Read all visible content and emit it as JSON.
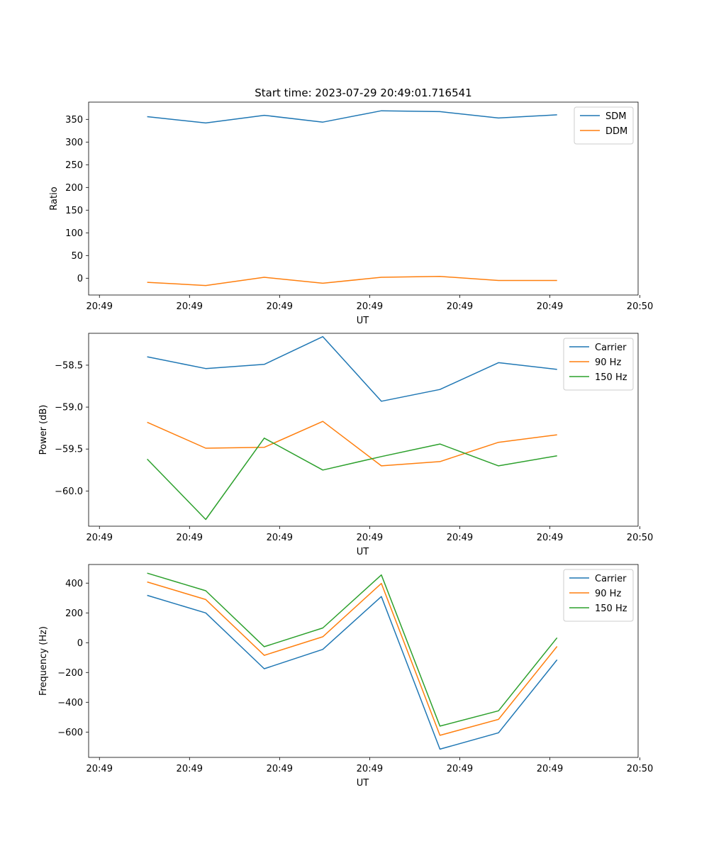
{
  "figure": {
    "title": "Start time: 2023-07-29 20:49:01.716541"
  },
  "colors": {
    "blue": "#1f77b4",
    "orange": "#ff7f0e",
    "green": "#2ca02c"
  },
  "chart_data": [
    {
      "type": "line",
      "title": "Start time: 2023-07-29 20:49:01.716541",
      "xlabel": "UT",
      "ylabel": "Ratio",
      "x": [
        0.65,
        1.3,
        1.95,
        2.6,
        3.25,
        3.9,
        4.55,
        5.2
      ],
      "xlim": [
        0.0,
        6.1
      ],
      "xticks": [
        0.12,
        1.12,
        2.12,
        3.12,
        4.12,
        5.12,
        6.12
      ],
      "xticklabels": [
        "20:49",
        "20:49",
        "20:49",
        "20:49",
        "20:49",
        "20:49",
        "20:50"
      ],
      "ylim": [
        -37,
        388
      ],
      "yticks": [
        0,
        50,
        100,
        150,
        200,
        250,
        300,
        350
      ],
      "yticklabels": [
        "0",
        "50",
        "100",
        "150",
        "200",
        "250",
        "300",
        "350"
      ],
      "legend_position": "top-right",
      "series": [
        {
          "name": "SDM",
          "color": "#1f77b4",
          "values": [
            356,
            342,
            359,
            344,
            369,
            367,
            353,
            360
          ]
        },
        {
          "name": "DDM",
          "color": "#ff7f0e",
          "values": [
            -9,
            -16,
            2,
            -11,
            2,
            4,
            -5,
            -5
          ]
        }
      ]
    },
    {
      "type": "line",
      "xlabel": "UT",
      "ylabel": "Power (dB)",
      "x": [
        0.65,
        1.3,
        1.95,
        2.6,
        3.25,
        3.9,
        4.55,
        5.2
      ],
      "xlim": [
        0.0,
        6.1
      ],
      "xticks": [
        0.12,
        1.12,
        2.12,
        3.12,
        4.12,
        5.12,
        6.12
      ],
      "xticklabels": [
        "20:49",
        "20:49",
        "20:49",
        "20:49",
        "20:49",
        "20:49",
        "20:50"
      ],
      "ylim": [
        -60.42,
        -58.12
      ],
      "yticks": [
        -60.0,
        -59.5,
        -59.0,
        -58.5
      ],
      "yticklabels": [
        "−60.0",
        "−59.5",
        "−59.0",
        "−58.5"
      ],
      "legend_position": "top-right",
      "series": [
        {
          "name": "Carrier",
          "color": "#1f77b4",
          "values": [
            -58.4,
            -58.54,
            -58.49,
            -58.16,
            -58.93,
            -58.79,
            -58.47,
            -58.55
          ]
        },
        {
          "name": "90 Hz",
          "color": "#ff7f0e",
          "values": [
            -59.18,
            -59.49,
            -59.48,
            -59.17,
            -59.7,
            -59.65,
            -59.42,
            -59.33
          ]
        },
        {
          "name": "150 Hz",
          "color": "#2ca02c",
          "values": [
            -59.62,
            -60.34,
            -59.37,
            -59.75,
            -59.59,
            -59.44,
            -59.7,
            -59.58
          ]
        }
      ]
    },
    {
      "type": "line",
      "xlabel": "UT",
      "ylabel": "Frequency (Hz)",
      "x": [
        0.65,
        1.3,
        1.95,
        2.6,
        3.25,
        3.9,
        4.55,
        5.2
      ],
      "xlim": [
        0.0,
        6.1
      ],
      "xticks": [
        0.12,
        1.12,
        2.12,
        3.12,
        4.12,
        5.12,
        6.12
      ],
      "xticklabels": [
        "20:49",
        "20:49",
        "20:49",
        "20:49",
        "20:49",
        "20:49",
        "20:50"
      ],
      "ylim": [
        -770,
        525
      ],
      "yticks": [
        -600,
        -400,
        -200,
        0,
        200,
        400
      ],
      "yticklabels": [
        "−600",
        "−400",
        "−200",
        "0",
        "200",
        "400"
      ],
      "legend_position": "top-right",
      "series": [
        {
          "name": "Carrier",
          "color": "#1f77b4",
          "values": [
            318,
            200,
            -175,
            -45,
            310,
            -715,
            -605,
            -115
          ]
        },
        {
          "name": "90 Hz",
          "color": "#ff7f0e",
          "values": [
            408,
            290,
            -85,
            40,
            398,
            -622,
            -515,
            -25
          ]
        },
        {
          "name": "150 Hz",
          "color": "#2ca02c",
          "values": [
            467,
            349,
            -27,
            99,
            455,
            -560,
            -457,
            33
          ]
        }
      ]
    }
  ]
}
